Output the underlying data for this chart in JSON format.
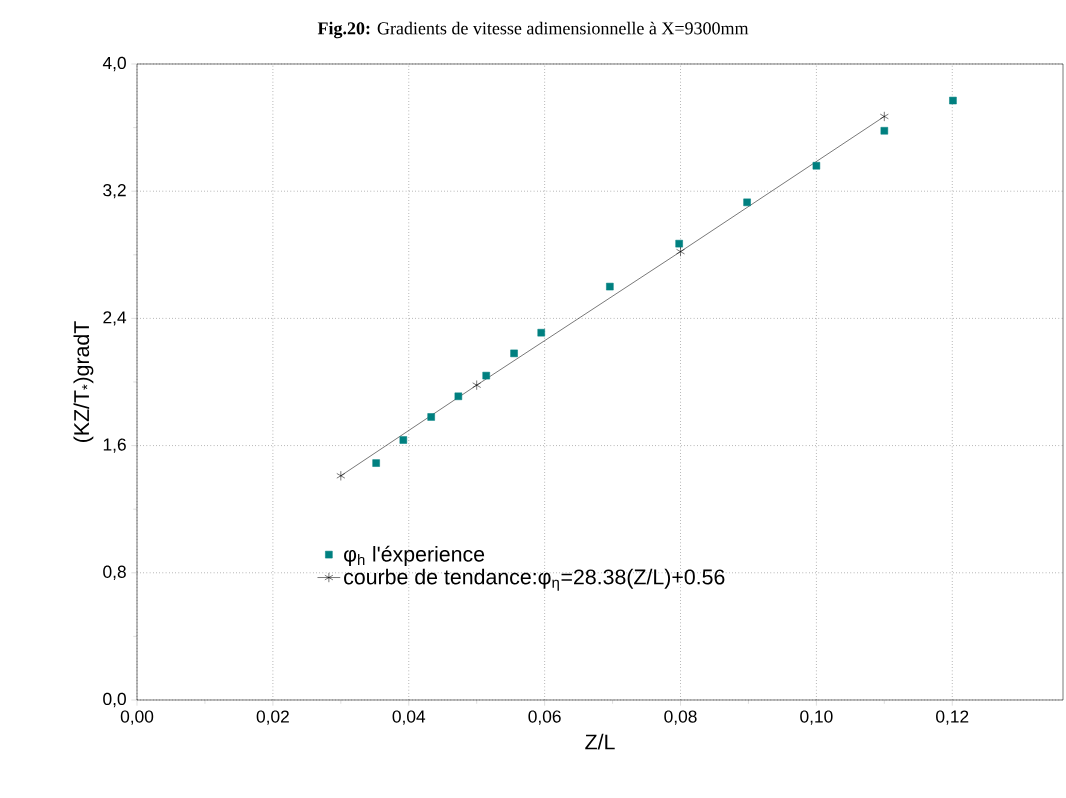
{
  "chart_data": {
    "type": "scatter",
    "title": "**Fig.20:** Gradients de vitesse adimensionnelle à X=9300mm",
    "xlabel": "Z/L",
    "ylabel": "(KZ/T$_{*}$)gradT",
    "xlim": [
      0,
      0.1363
    ],
    "ylim": [
      0,
      4.0
    ],
    "xticks": [
      {
        "value": 0,
        "label": "0,00"
      },
      {
        "value": 0.02,
        "label": "0,02"
      },
      {
        "value": 0.04,
        "label": "0,04"
      },
      {
        "value": 0.06,
        "label": "0,06"
      },
      {
        "value": 0.08,
        "label": "0,08"
      },
      {
        "value": 0.1,
        "label": "0,10"
      },
      {
        "value": 0.12,
        "label": "0,12"
      }
    ],
    "yticks": [
      {
        "value": 0,
        "label": "0,0"
      },
      {
        "value": 0.8,
        "label": "0,8"
      },
      {
        "value": 1.6,
        "label": "1,6"
      },
      {
        "value": 2.4,
        "label": "2,4"
      },
      {
        "value": 3.2,
        "label": "3,2"
      },
      {
        "value": 4.0,
        "label": "4,0"
      }
    ],
    "grid": true,
    "legend": "bottom left",
    "series": [
      {
        "name": "φ$_{h}$ l'éxperience",
        "marker": "square",
        "color": "#008080",
        "x": [
          0.0352,
          0.0392,
          0.0433,
          0.0473,
          0.0514,
          0.0555,
          0.0595,
          0.0696,
          0.0798,
          0.0898,
          0.1,
          0.11,
          0.1201
        ],
        "values": [
          1.49,
          1.635,
          1.78,
          1.91,
          2.04,
          2.18,
          2.31,
          2.6,
          2.87,
          3.13,
          3.36,
          3.58,
          3.77
        ]
      },
      {
        "name": "courbe de tendance:φ$_{η}$=28.38(Z/L)+0.56",
        "type": "line",
        "marker": "cross",
        "color": "#000000",
        "x": [
          0.03,
          0.05,
          0.08,
          0.11
        ],
        "values": [
          1.41,
          1.98,
          2.82,
          3.67
        ]
      }
    ]
  }
}
